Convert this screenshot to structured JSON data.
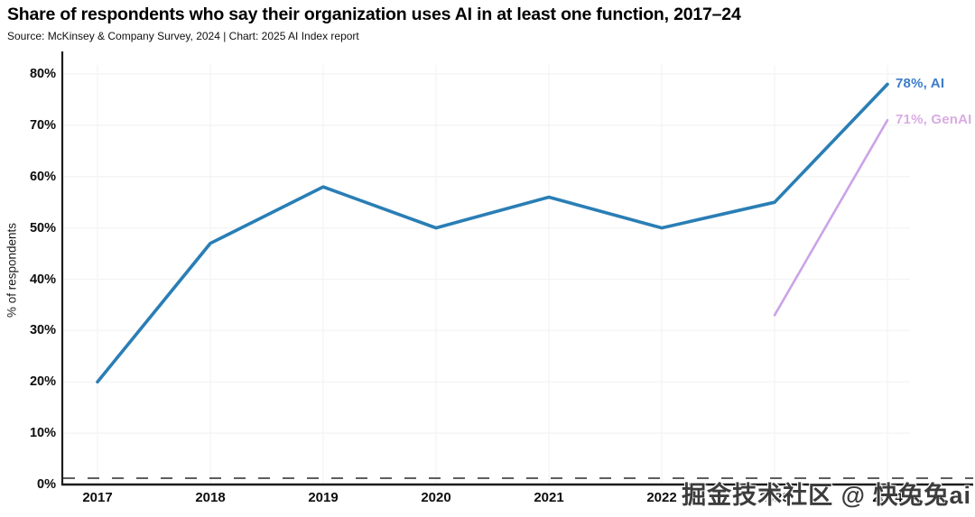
{
  "header": {
    "title": "Share of respondents who say their organization uses AI in at least one function, 2017–24",
    "source": "Source: McKinsey & Company Survey, 2024 | Chart: 2025 AI Index report"
  },
  "watermark": "掘金技术社区 @ 快兔兔ai",
  "colors": {
    "ai_line": "#2A7EB5",
    "ai_label": "#3B7CC9",
    "genai_line": "#CCA3E8",
    "genai_label": "#D9ACE3",
    "axis": "#1c1c1c",
    "gridline": "#f5f5f5",
    "zero_dash": "#474747"
  },
  "chart_data": {
    "type": "line",
    "title": "Share of respondents who say their organization uses AI in at least one function, 2017–24",
    "x": [
      "2017",
      "2018",
      "2019",
      "2020",
      "2021",
      "2022",
      "2023",
      "2024"
    ],
    "series": [
      {
        "name": "AI",
        "values": [
          20,
          47,
          58,
          50,
          56,
          50,
          55,
          78
        ],
        "color": "#2A7EB5",
        "line_width": 3.6,
        "end_label": "78%, AI",
        "end_label_color": "#3B7CC9"
      },
      {
        "name": "GenAI",
        "values": [
          null,
          null,
          null,
          null,
          null,
          null,
          33,
          71
        ],
        "color": "#CCA3E8",
        "line_width": 2.6,
        "end_label": "71%, GenAI",
        "end_label_color": "#D9ACE3"
      }
    ],
    "xlabel": "",
    "ylabel": "% of respondents",
    "ylim": [
      0,
      80
    ],
    "yticks": [
      0,
      10,
      20,
      30,
      40,
      50,
      60,
      70,
      80
    ],
    "ytick_labels": [
      "0%",
      "10%",
      "20%",
      "30%",
      "40%",
      "50%",
      "60%",
      "70%",
      "80%"
    ],
    "grid": true,
    "zero_line_style": "dashed",
    "legend": "end-of-line-labels"
  }
}
